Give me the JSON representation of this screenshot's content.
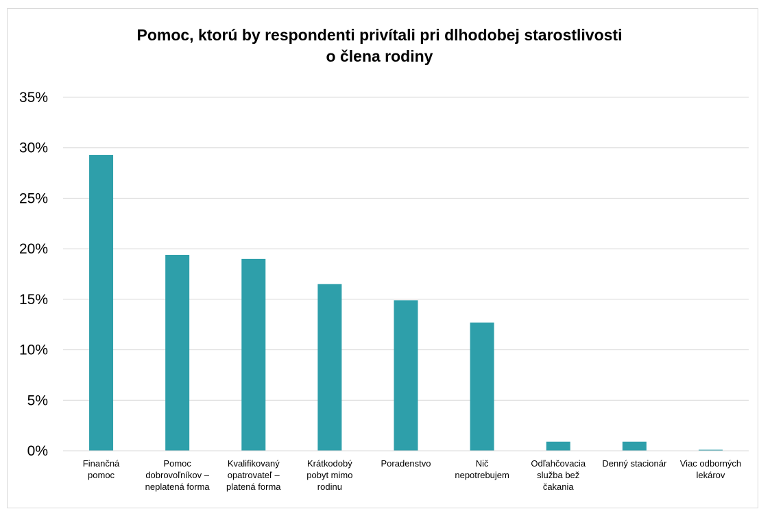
{
  "chart_data": {
    "type": "bar",
    "title_lines": [
      "Pomoc, ktorú by respondenti privítali pri dlhodobej starostlivosti",
      "o člena rodiny"
    ],
    "categories": [
      [
        "Finančná",
        "pomoc"
      ],
      [
        "Pomoc",
        "dobrovoľníkov –",
        "neplatená forma"
      ],
      [
        "Kvalifikovaný",
        "opatrovateľ –",
        "platená forma"
      ],
      [
        "Krátkodobý",
        "pobyt mimo",
        "rodinu"
      ],
      [
        "Poradenstvo"
      ],
      [
        "Nič",
        "nepotrebujem"
      ],
      [
        "Odľahčovacia",
        "služba bež",
        "čakania"
      ],
      [
        "Denný stacionár"
      ],
      [
        "Viac odborných",
        "lekárov"
      ]
    ],
    "values": [
      29.3,
      19.4,
      19.0,
      16.5,
      14.9,
      12.7,
      0.9,
      0.9,
      0.1
    ],
    "ylim": [
      0,
      35
    ],
    "yticks": [
      "0%",
      "5%",
      "10%",
      "15%",
      "20%",
      "25%",
      "30%",
      "35%"
    ],
    "ytick_values": [
      0,
      5,
      10,
      15,
      20,
      25,
      30,
      35
    ],
    "xlabel": "",
    "ylabel": "",
    "grid": true,
    "bar_color": "#2e9faa",
    "grid_color": "#d9d9d9"
  }
}
